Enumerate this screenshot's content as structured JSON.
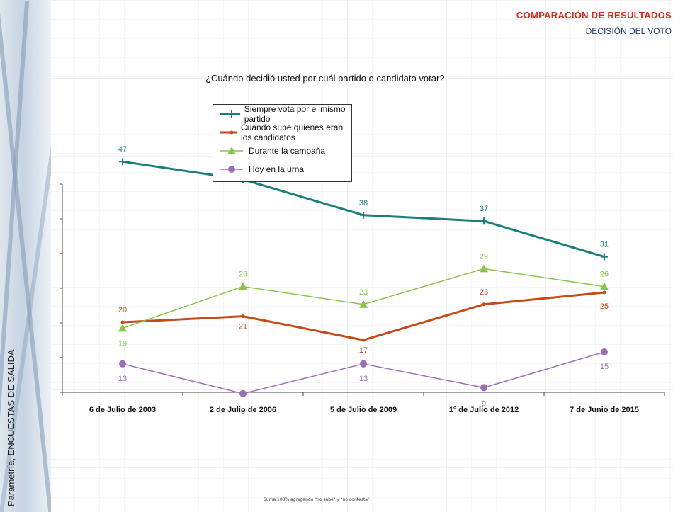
{
  "header": {
    "title": "COMPARACIÓN DE RESULTADOS",
    "subtitle": "DECISIÓN DEL VOTO"
  },
  "side_label": "Parametría, ENCUESTAS DE SALIDA",
  "footnote": "Suma 100% agregando \"no sabe\" y \"no contesta\"",
  "colors": {
    "series1": "#1a7f7a",
    "series2": "#c64a18",
    "series3": "#8ac44a",
    "series4": "#9b6fb5",
    "header_red": "#d9241c",
    "header_blue": "#1f3a66"
  },
  "chart_data": {
    "type": "line",
    "title": "¿Cuándo decidió usted por cuál partido o candidato votar?",
    "categories": [
      "6 de Julio de 2003",
      "2 de Julio de 2006",
      "5 de Julio de 2009",
      "1° de Julio de 2012",
      "7 de Junio de 2015"
    ],
    "ylim": [
      0,
      55
    ],
    "grid": false,
    "legend": "top-center",
    "series": [
      {
        "name": "Siempre vota por el mismo partido",
        "values": [
          47,
          44,
          38,
          37,
          31
        ],
        "marker": "plus",
        "color": "#1a7f7a"
      },
      {
        "name": "Cuando supe quienes eran los candidatos",
        "values": [
          20,
          21,
          17,
          23,
          25
        ],
        "marker": "dot",
        "color": "#c64a18"
      },
      {
        "name": "Durante la campaña",
        "values": [
          19,
          26,
          23,
          29,
          26
        ],
        "marker": "triangle",
        "color": "#8ac44a"
      },
      {
        "name": "Hoy en la urna",
        "values": [
          13,
          8,
          13,
          9,
          15
        ],
        "marker": "circle",
        "color": "#9b6fb5"
      }
    ]
  }
}
